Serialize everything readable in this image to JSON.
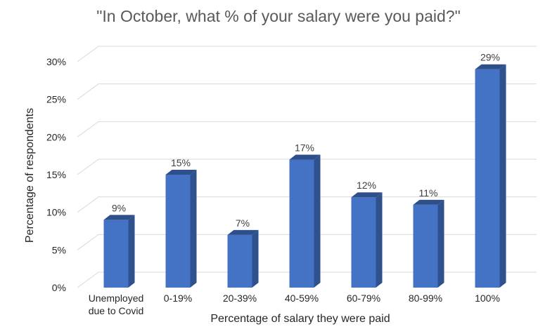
{
  "chart_data": {
    "type": "bar",
    "title": "\"In October, what % of your salary were you paid?\"",
    "xlabel": "Percentage of salary they were paid",
    "ylabel": "Percentage of respondents",
    "categories": [
      [
        "Unemployed",
        "due to Covid"
      ],
      [
        "0-19%"
      ],
      [
        "20-39%"
      ],
      [
        "40-59%"
      ],
      [
        "60-79%"
      ],
      [
        "80-99%"
      ],
      [
        "100%"
      ]
    ],
    "values": [
      9,
      15,
      7,
      17,
      12,
      11,
      29
    ],
    "data_labels": [
      "9%",
      "15%",
      "7%",
      "17%",
      "12%",
      "11%",
      "29%"
    ],
    "y_ticks": [
      "0%",
      "5%",
      "10%",
      "15%",
      "20%",
      "25%",
      "30%"
    ],
    "ylim": [
      0,
      30
    ],
    "grid": true,
    "legend": "none",
    "colors": {
      "bar_front": "#4472c4",
      "bar_side": "#2f528f",
      "bar_top": "#2e4f8a",
      "grid": "#d9d9d9"
    }
  }
}
